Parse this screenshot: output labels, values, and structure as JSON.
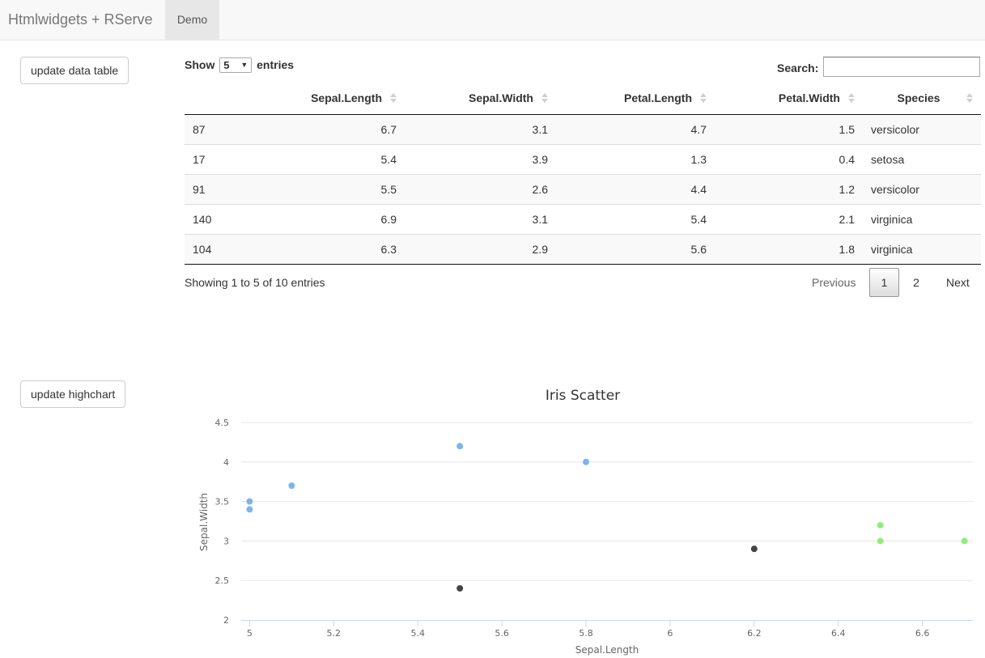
{
  "navbar": {
    "brand": "Htmlwidgets + RServe",
    "tab": "Demo"
  },
  "buttons": {
    "update_table": "update data table",
    "update_chart": "update highchart"
  },
  "table_controls": {
    "show_label": "Show",
    "entries_selected": "5",
    "entries_label": "entries",
    "search_label": "Search:",
    "search_value": ""
  },
  "table": {
    "columns": [
      "",
      "Sepal.Length",
      "Sepal.Width",
      "Petal.Length",
      "Petal.Width",
      "Species"
    ],
    "rows": [
      [
        "87",
        "6.7",
        "3.1",
        "4.7",
        "1.5",
        "versicolor"
      ],
      [
        "17",
        "5.4",
        "3.9",
        "1.3",
        "0.4",
        "setosa"
      ],
      [
        "91",
        "5.5",
        "2.6",
        "4.4",
        "1.2",
        "versicolor"
      ],
      [
        "140",
        "6.9",
        "3.1",
        "5.4",
        "2.1",
        "virginica"
      ],
      [
        "104",
        "6.3",
        "2.9",
        "5.6",
        "1.8",
        "virginica"
      ]
    ],
    "info": "Showing 1 to 5 of 10 entries",
    "pagination": {
      "previous": "Previous",
      "pages": [
        "1",
        "2"
      ],
      "current": "1",
      "next": "Next"
    }
  },
  "chart_data": {
    "type": "scatter",
    "title": "Iris Scatter",
    "xlabel": "Sepal.Length",
    "ylabel": "Sepal.Width",
    "xlim": [
      4.98,
      6.72
    ],
    "ylim": [
      2,
      4.5
    ],
    "xticks": [
      "5",
      "5.2",
      "5.4",
      "5.6",
      "5.8",
      "6",
      "6.2",
      "6.4",
      "6.6"
    ],
    "yticks": [
      "2",
      "2.5",
      "3",
      "3.5",
      "4",
      "4.5"
    ],
    "grid": true,
    "series": [
      {
        "color": "#7cb5ec",
        "points": [
          [
            5.0,
            3.5
          ],
          [
            5.0,
            3.4
          ],
          [
            5.1,
            3.7
          ],
          [
            5.5,
            4.2
          ],
          [
            5.8,
            4.0
          ]
        ]
      },
      {
        "color": "#434348",
        "points": [
          [
            5.5,
            2.4
          ],
          [
            6.2,
            2.9
          ]
        ]
      },
      {
        "color": "#90ed7d",
        "points": [
          [
            6.5,
            3.2
          ],
          [
            6.5,
            3.0
          ],
          [
            6.7,
            3.0
          ]
        ]
      }
    ]
  }
}
